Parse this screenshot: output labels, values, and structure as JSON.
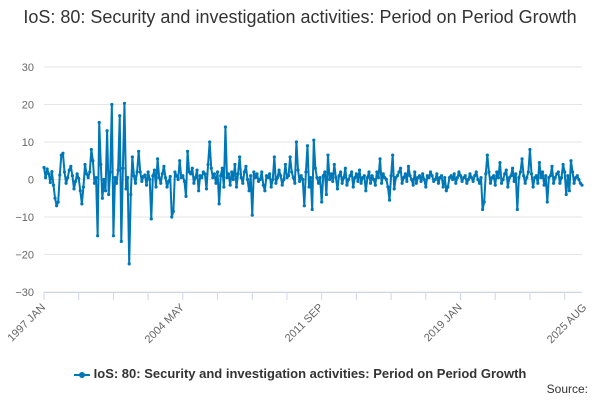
{
  "chart_data": {
    "type": "line",
    "title": "IoS: 80: Security and investigation activities: Period on Period Growth",
    "xlabel": "",
    "ylabel": "",
    "ylim": [
      -30,
      30
    ],
    "yticks": [
      -30,
      -20,
      -10,
      0,
      10,
      20,
      30
    ],
    "ytick_labels": [
      "−30",
      "−20",
      "−10",
      "0",
      "10",
      "20",
      "30"
    ],
    "xtick_labels": [
      "1997 JAN",
      "2004 MAY",
      "2011 SEP",
      "2019 JAN",
      "2025 AUG"
    ],
    "xtick_months": [
      0,
      88,
      176,
      264,
      343
    ],
    "grid": true,
    "legend_position": "bottom",
    "series": [
      {
        "name": "IoS: 80: Security and investigation activities: Period on Period Growth",
        "color": "#0077b6",
        "start": "1997 JAN",
        "frequency": "monthly",
        "values": [
          3.2,
          0.5,
          2.8,
          1.5,
          -0.8,
          2.1,
          -1.5,
          -5.0,
          -7.0,
          -6.0,
          1.2,
          6.5,
          7.0,
          2.0,
          -1.0,
          0.5,
          2.5,
          3.5,
          1.0,
          -2.5,
          -0.5,
          1.5,
          0.3,
          -3.0,
          -6.5,
          -2.0,
          4.0,
          1.5,
          0.5,
          2.0,
          8.0,
          5.0,
          -1.0,
          0.5,
          -15.0,
          15.2,
          4.0,
          -5.0,
          0.0,
          -3.0,
          13.0,
          -4.0,
          2.0,
          20.0,
          -15.0,
          0.5,
          -1.0,
          2.5,
          17.0,
          -16.5,
          3.0,
          20.3,
          -2.5,
          0.5,
          -22.5,
          -4.0,
          6.0,
          1.0,
          -1.0,
          2.0,
          7.5,
          2.0,
          -0.5,
          0.8,
          1.2,
          -1.5,
          2.0,
          0.0,
          -10.5,
          1.0,
          2.5,
          -2.0,
          5.5,
          0.5,
          -1.0,
          1.5,
          3.5,
          0.5,
          -2.0,
          -0.5,
          0.8,
          -10.0,
          -8.5,
          2.0,
          1.0,
          0.0,
          5.0,
          0.5,
          1.0,
          -0.5,
          -4.5,
          7.5,
          2.0,
          1.5,
          3.0,
          -1.0,
          0.5,
          2.5,
          -3.0,
          1.0,
          0.5,
          2.0,
          1.5,
          -2.5,
          4.0,
          10.0,
          3.0,
          0.5,
          1.5,
          -1.0,
          2.0,
          -6.5,
          1.0,
          3.0,
          -2.0,
          14.0,
          0.5,
          1.5,
          -1.5,
          2.0,
          0.0,
          4.0,
          -2.0,
          1.5,
          6.0,
          0.5,
          -1.0,
          2.0,
          3.5,
          0.0,
          -3.0,
          1.0,
          -9.5,
          2.0,
          0.5,
          1.5,
          -0.5,
          0.0,
          2.0,
          -1.5,
          -3.0,
          1.0,
          0.5,
          1.5,
          -2.0,
          0.0,
          6.0,
          -1.0,
          0.5,
          2.5,
          1.0,
          -1.5,
          0.0,
          4.0,
          0.5,
          1.0,
          6.0,
          2.0,
          0.5,
          -1.0,
          10.0,
          2.5,
          -0.5,
          1.0,
          0.0,
          -7.0,
          2.0,
          9.0,
          -2.0,
          0.5,
          -8.0,
          10.5,
          3.0,
          0.5,
          -1.0,
          0.5,
          -6.0,
          1.0,
          2.0,
          -4.0,
          6.5,
          0.0,
          1.5,
          -0.5,
          4.0,
          0.5,
          -2.5,
          1.0,
          2.0,
          -1.0,
          0.5,
          3.0,
          -1.5,
          0.0,
          1.0,
          2.0,
          -2.0,
          0.5,
          1.5,
          -0.5,
          2.5,
          -1.0,
          0.5,
          1.0,
          -3.0,
          0.5,
          2.0,
          -1.0,
          1.0,
          0.0,
          -1.5,
          2.0,
          0.5,
          5.5,
          -1.0,
          1.5,
          0.5,
          0.0,
          -2.0,
          -5.5,
          1.0,
          6.5,
          -2.5,
          0.5,
          1.0,
          2.0,
          3.0,
          -1.0,
          0.5,
          1.5,
          -0.5,
          3.5,
          1.0,
          0.0,
          -1.5,
          2.0,
          -1.0,
          0.5,
          1.0,
          -0.5,
          1.5,
          0.0,
          -2.0,
          1.0,
          0.5,
          2.0,
          1.0,
          -0.5,
          0.0,
          1.5,
          -1.0,
          0.5,
          1.0,
          -2.0,
          0.5,
          -3.0,
          -2.0,
          0.5,
          1.0,
          0.0,
          1.5,
          -1.0,
          0.5,
          2.0,
          1.0,
          -0.5,
          0.5,
          1.0,
          -1.0,
          0.0,
          1.5,
          0.5,
          -0.5,
          1.0,
          2.0,
          0.0,
          -1.0,
          0.5,
          -8.0,
          -6.0,
          1.5,
          6.5,
          2.0,
          -1.0,
          0.5,
          1.0,
          -1.5,
          2.0,
          0.5,
          4.5,
          -1.0,
          0.0,
          1.5,
          2.5,
          -2.0,
          0.5,
          1.0,
          3.0,
          -0.5,
          1.5,
          -8.0,
          0.5,
          2.0,
          5.5,
          1.0,
          -1.0,
          0.5,
          2.0,
          8.0,
          1.5,
          -2.0,
          0.5,
          1.0,
          -1.0,
          4.5,
          0.5,
          2.0,
          -1.5,
          1.0,
          -6.0,
          0.5,
          1.0,
          3.5,
          -1.0,
          0.5,
          1.5,
          2.0,
          -1.0,
          0.5,
          4.0,
          2.0,
          -4.0,
          1.0,
          -3.0,
          5.0,
          2.0,
          -1.0,
          0.5,
          1.0,
          0.0,
          -1.0,
          -1.5
        ]
      }
    ]
  },
  "legend": {
    "label": "IoS: 80: Security and investigation activities: Period on Period Growth"
  },
  "footer": {
    "source": "Source:"
  }
}
